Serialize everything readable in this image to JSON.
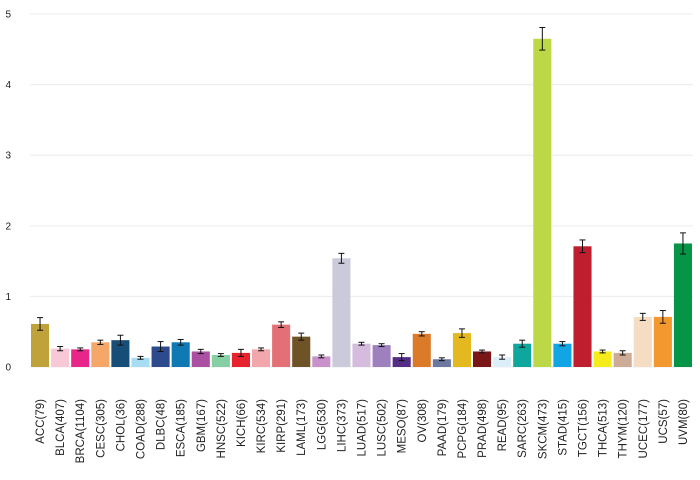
{
  "chart_data": {
    "type": "bar",
    "title": "",
    "xlabel": "",
    "ylabel": "",
    "ylim": [
      0,
      5.1
    ],
    "grid": true,
    "error_bars": true,
    "yticks": [
      "0",
      "1",
      "2",
      "3",
      "4",
      "5"
    ],
    "categories": [
      "ACC(79)",
      "BLCA(407)",
      "BRCA(1104)",
      "CESC(305)",
      "CHOL(36)",
      "COAD(288)",
      "DLBC(48)",
      "ESCA(185)",
      "GBM(167)",
      "HNSC(522)",
      "KICH(66)",
      "KIRC(534)",
      "KIRP(291)",
      "LAML(173)",
      "LGG(530)",
      "LIHC(373)",
      "LUAD(517)",
      "LUSC(502)",
      "MESO(87)",
      "OV(308)",
      "PAAD(179)",
      "PCPG(184)",
      "PRAD(498)",
      "READ(95)",
      "SARC(263)",
      "SKCM(473)",
      "STAD(415)",
      "TGCT(156)",
      "THCA(513)",
      "THYM(120)",
      "UCEC(177)",
      "UCS(57)",
      "UVM(80)"
    ],
    "values": [
      0.61,
      0.26,
      0.25,
      0.35,
      0.38,
      0.13,
      0.29,
      0.35,
      0.22,
      0.17,
      0.2,
      0.25,
      0.6,
      0.43,
      0.15,
      1.54,
      0.33,
      0.31,
      0.14,
      0.47,
      0.11,
      0.48,
      0.22,
      0.14,
      0.33,
      4.65,
      0.33,
      1.71,
      0.22,
      0.2,
      0.71,
      0.71,
      1.75
    ],
    "errors": [
      0.09,
      0.03,
      0.02,
      0.03,
      0.07,
      0.02,
      0.07,
      0.04,
      0.03,
      0.02,
      0.05,
      0.02,
      0.04,
      0.05,
      0.02,
      0.07,
      0.02,
      0.02,
      0.05,
      0.03,
      0.02,
      0.06,
      0.02,
      0.03,
      0.05,
      0.16,
      0.03,
      0.09,
      0.02,
      0.03,
      0.05,
      0.09,
      0.15
    ],
    "colors": [
      "#BFA23A",
      "#F8C8D6",
      "#E8268A",
      "#F5A76A",
      "#174E78",
      "#A7DDF2",
      "#2C4A8C",
      "#0E79B2",
      "#AA4FA2",
      "#86CFA4",
      "#E6222C",
      "#F2A7AD",
      "#E47077",
      "#6E5327",
      "#C891C9",
      "#CACADB",
      "#D5BBDE",
      "#9E80BE",
      "#542E86",
      "#DB7B2A",
      "#6B78A0",
      "#E3B91F",
      "#7A1618",
      "#DCEEF7",
      "#0FA69E",
      "#BCD846",
      "#12A5E3",
      "#BE1E2D",
      "#F6EB1B",
      "#CDAB96",
      "#F5DDC4",
      "#F3972F",
      "#069446"
    ]
  }
}
